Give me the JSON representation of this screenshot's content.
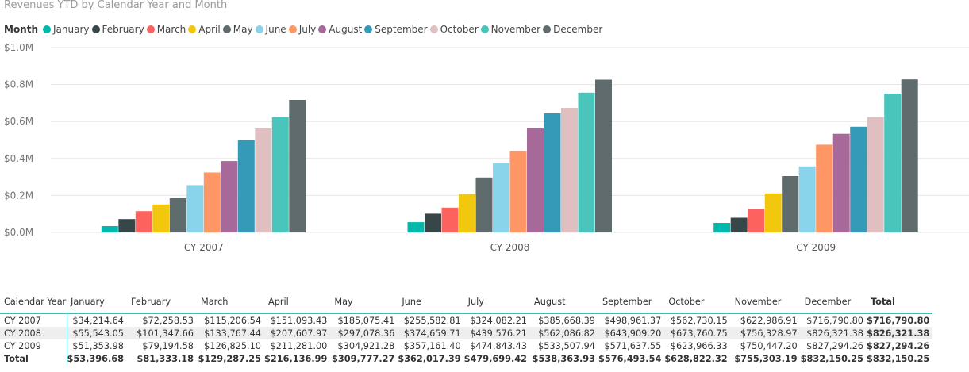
{
  "chart_data": {
    "type": "bar",
    "title": "Revenues YTD by Calendar Year and Month",
    "legend_title": "Month",
    "legend_position": "top-left",
    "categories": [
      "CY 2007",
      "CY 2008",
      "CY 2009"
    ],
    "y_ticks": [
      "$1.0M",
      "$0.8M",
      "$0.6M",
      "$0.4M",
      "$0.2M",
      "$0.0M"
    ],
    "ylim": [
      0,
      1000000
    ],
    "grid": true,
    "series": [
      {
        "name": "January",
        "color": "#01B8AA",
        "values": [
          34214.64,
          55543.05,
          51353.98
        ]
      },
      {
        "name": "February",
        "color": "#374649",
        "values": [
          72258.53,
          101347.66,
          79194.58
        ]
      },
      {
        "name": "March",
        "color": "#FD625E",
        "values": [
          115206.54,
          133767.44,
          126825.1
        ]
      },
      {
        "name": "April",
        "color": "#F2C80F",
        "values": [
          151093.43,
          207607.97,
          211281.0
        ]
      },
      {
        "name": "May",
        "color": "#5F6B6D",
        "values": [
          185075.41,
          297078.36,
          304921.28
        ]
      },
      {
        "name": "June",
        "color": "#8AD4EB",
        "values": [
          255582.81,
          374659.71,
          357161.4
        ]
      },
      {
        "name": "July",
        "color": "#FE9666",
        "values": [
          324082.21,
          439576.21,
          474843.43
        ]
      },
      {
        "name": "August",
        "color": "#A66999",
        "values": [
          385668.39,
          562086.82,
          533507.94
        ]
      },
      {
        "name": "September",
        "color": "#3599B8",
        "values": [
          498961.37,
          643909.2,
          571637.55
        ]
      },
      {
        "name": "October",
        "color": "#DFBFBF",
        "values": [
          562730.15,
          673760.75,
          623966.33
        ]
      },
      {
        "name": "November",
        "color": "#4AC5BB",
        "values": [
          622986.91,
          756328.97,
          750447.2
        ]
      },
      {
        "name": "December",
        "color": "#5F6B6D",
        "values": [
          716790.8,
          826321.38,
          827294.26
        ]
      }
    ]
  },
  "table": {
    "headers": [
      "Calendar Year",
      "January",
      "February",
      "March",
      "April",
      "May",
      "June",
      "July",
      "August",
      "September",
      "October",
      "November",
      "December",
      "Total"
    ],
    "rows": [
      [
        "CY 2007",
        "$34,214.64",
        "$72,258.53",
        "$115,206.54",
        "$151,093.43",
        "$185,075.41",
        "$255,582.81",
        "$324,082.21",
        "$385,668.39",
        "$498,961.37",
        "$562,730.15",
        "$622,986.91",
        "$716,790.80",
        "$716,790.80"
      ],
      [
        "CY 2008",
        "$55,543.05",
        "$101,347.66",
        "$133,767.44",
        "$207,607.97",
        "$297,078.36",
        "$374,659.71",
        "$439,576.21",
        "$562,086.82",
        "$643,909.20",
        "$673,760.75",
        "$756,328.97",
        "$826,321.38",
        "$826,321.38"
      ],
      [
        "CY 2009",
        "$51,353.98",
        "$79,194.58",
        "$126,825.10",
        "$211,281.00",
        "$304,921.28",
        "$357,161.40",
        "$474,843.43",
        "$533,507.94",
        "$571,637.55",
        "$623,966.33",
        "$750,447.20",
        "$827,294.26",
        "$827,294.26"
      ]
    ],
    "total_row": [
      "Total",
      "$53,396.68",
      "$81,333.18",
      "$129,287.25",
      "$216,136.99",
      "$309,777.27",
      "$362,017.39",
      "$479,699.42",
      "$538,363.93",
      "$576,493.54",
      "$628,822.32",
      "$755,303.19",
      "$832,150.25",
      "$832,150.25"
    ]
  }
}
